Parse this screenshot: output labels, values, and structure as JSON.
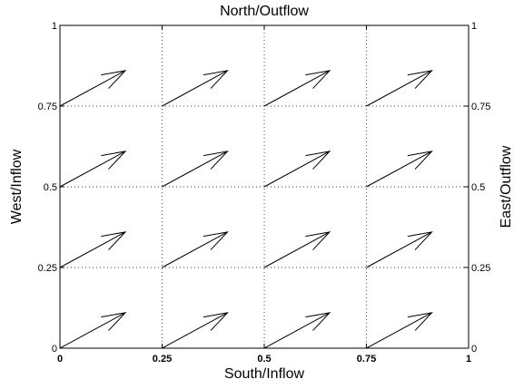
{
  "chart_data": {
    "type": "quiver",
    "labels": {
      "top": "North/Outflow",
      "bottom": "South/Inflow",
      "left": "West/Inflow",
      "right": "East/Outflow"
    },
    "xlim": [
      0,
      1
    ],
    "ylim": [
      0,
      1
    ],
    "x_ticks": [
      0,
      0.25,
      0.5,
      0.75,
      1
    ],
    "x_tick_labels": [
      "0",
      "0.25",
      "0.5",
      "0.75",
      "1"
    ],
    "y_ticks": [
      0,
      0.25,
      0.5,
      0.75,
      1
    ],
    "y_tick_labels": [
      "0",
      "0.25",
      "0.5",
      "0.75",
      "1"
    ],
    "right_tick_labels": [
      "0",
      "0.25",
      "0.5",
      "0.75",
      "1"
    ],
    "grid": true,
    "arrows": [
      {
        "x": 0,
        "y": 0,
        "u": 0.16,
        "v": 0.11
      },
      {
        "x": 0.25,
        "y": 0,
        "u": 0.16,
        "v": 0.11
      },
      {
        "x": 0.5,
        "y": 0,
        "u": 0.16,
        "v": 0.11
      },
      {
        "x": 0.75,
        "y": 0,
        "u": 0.16,
        "v": 0.11
      },
      {
        "x": 0,
        "y": 0.25,
        "u": 0.16,
        "v": 0.11
      },
      {
        "x": 0.25,
        "y": 0.25,
        "u": 0.16,
        "v": 0.11
      },
      {
        "x": 0.5,
        "y": 0.25,
        "u": 0.16,
        "v": 0.11
      },
      {
        "x": 0.75,
        "y": 0.25,
        "u": 0.16,
        "v": 0.11
      },
      {
        "x": 0,
        "y": 0.5,
        "u": 0.16,
        "v": 0.11
      },
      {
        "x": 0.25,
        "y": 0.5,
        "u": 0.16,
        "v": 0.11
      },
      {
        "x": 0.5,
        "y": 0.5,
        "u": 0.16,
        "v": 0.11
      },
      {
        "x": 0.75,
        "y": 0.5,
        "u": 0.16,
        "v": 0.11
      },
      {
        "x": 0,
        "y": 0.75,
        "u": 0.16,
        "v": 0.11
      },
      {
        "x": 0.25,
        "y": 0.75,
        "u": 0.16,
        "v": 0.11
      },
      {
        "x": 0.5,
        "y": 0.75,
        "u": 0.16,
        "v": 0.11
      },
      {
        "x": 0.75,
        "y": 0.75,
        "u": 0.16,
        "v": 0.11
      }
    ]
  }
}
